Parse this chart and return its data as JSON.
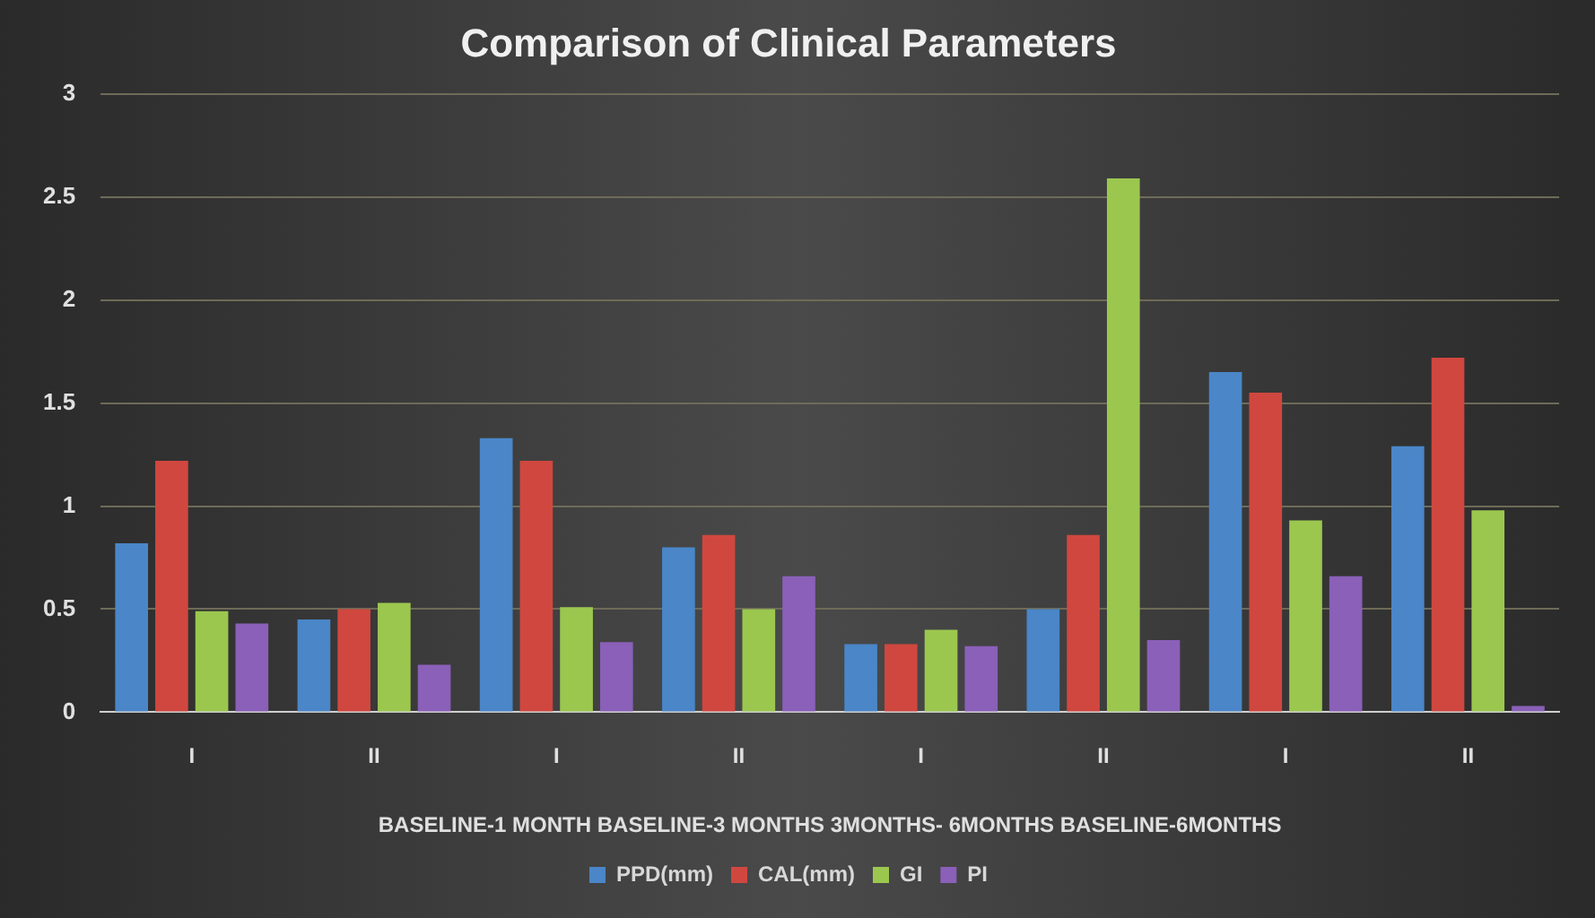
{
  "chart_data": {
    "type": "bar",
    "title": "Comparison of Clinical Parameters",
    "xlabel": "BASELINE-1 MONTH BASELINE-3 MONTHS 3MONTHS- 6MONTHS BASELINE-6MONTHS",
    "categories": [
      "I",
      "II",
      "I",
      "II",
      "I",
      "II",
      "I",
      "II"
    ],
    "series": [
      {
        "name": "PPD(mm)",
        "color": "#4a86c8",
        "values": [
          0.82,
          0.45,
          1.33,
          0.8,
          0.33,
          0.5,
          1.65,
          1.29
        ]
      },
      {
        "name": "CAL(mm)",
        "color": "#d0473f",
        "values": [
          1.22,
          0.5,
          1.22,
          0.86,
          0.33,
          0.86,
          1.55,
          1.72
        ]
      },
      {
        "name": "GI",
        "color": "#9bc74f",
        "values": [
          0.49,
          0.53,
          0.51,
          0.5,
          0.4,
          2.59,
          0.93,
          0.98
        ]
      },
      {
        "name": "PI",
        "color": "#8a60b8",
        "values": [
          0.43,
          0.23,
          0.34,
          0.66,
          0.32,
          0.35,
          0.66,
          0.03
        ]
      }
    ],
    "ylim": [
      0,
      3
    ],
    "yticks": [
      0,
      0.5,
      1,
      1.5,
      2,
      2.5,
      3
    ],
    "grid": "y",
    "legend": "bottom"
  }
}
